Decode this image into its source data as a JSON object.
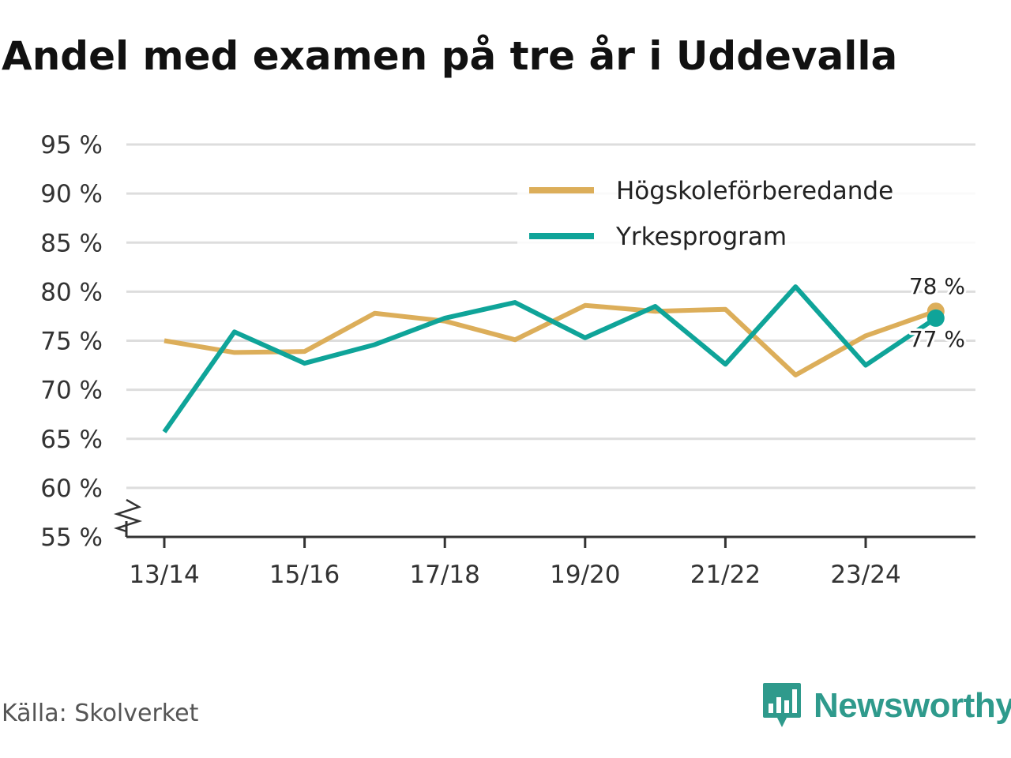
{
  "title": "Andel med examen på tre år i Uddevalla",
  "source": "Källa: Skolverket",
  "brand": "Newsworthy",
  "colors": {
    "series1": "#dcae5a",
    "series2": "#0fa499",
    "grid": "#dddddd",
    "axis": "#333333",
    "brand": "#2f9a8c"
  },
  "chart_data": {
    "type": "line",
    "title": "Andel med examen på tre år i Uddevalla",
    "xlabel": "",
    "ylabel": "",
    "ylim": [
      55,
      95
    ],
    "y_ticks": [
      55,
      60,
      65,
      70,
      75,
      80,
      85,
      90,
      95
    ],
    "y_tick_labels": [
      "55 %",
      "60 %",
      "65 %",
      "70 %",
      "75 %",
      "80 %",
      "85 %",
      "90 %",
      "95 %"
    ],
    "categories": [
      "13/14",
      "14/15",
      "15/16",
      "16/17",
      "17/18",
      "18/19",
      "19/20",
      "20/21",
      "21/22",
      "22/23",
      "23/24",
      "24/25"
    ],
    "x_tick_labels": [
      "13/14",
      "15/16",
      "17/18",
      "19/20",
      "21/22",
      "23/24"
    ],
    "axis_break": true,
    "legend_position": "top-right",
    "series": [
      {
        "name": "Högskoleförberedande",
        "values": [
          75.0,
          73.8,
          73.9,
          77.8,
          77.0,
          75.1,
          78.6,
          78.0,
          78.2,
          71.5,
          75.5,
          78.0
        ],
        "end_label": "78 %"
      },
      {
        "name": "Yrkesprogram",
        "values": [
          65.7,
          75.9,
          72.7,
          74.6,
          77.3,
          78.9,
          75.3,
          78.5,
          72.6,
          80.5,
          72.5,
          77.3
        ],
        "end_label": "77 %"
      }
    ]
  }
}
